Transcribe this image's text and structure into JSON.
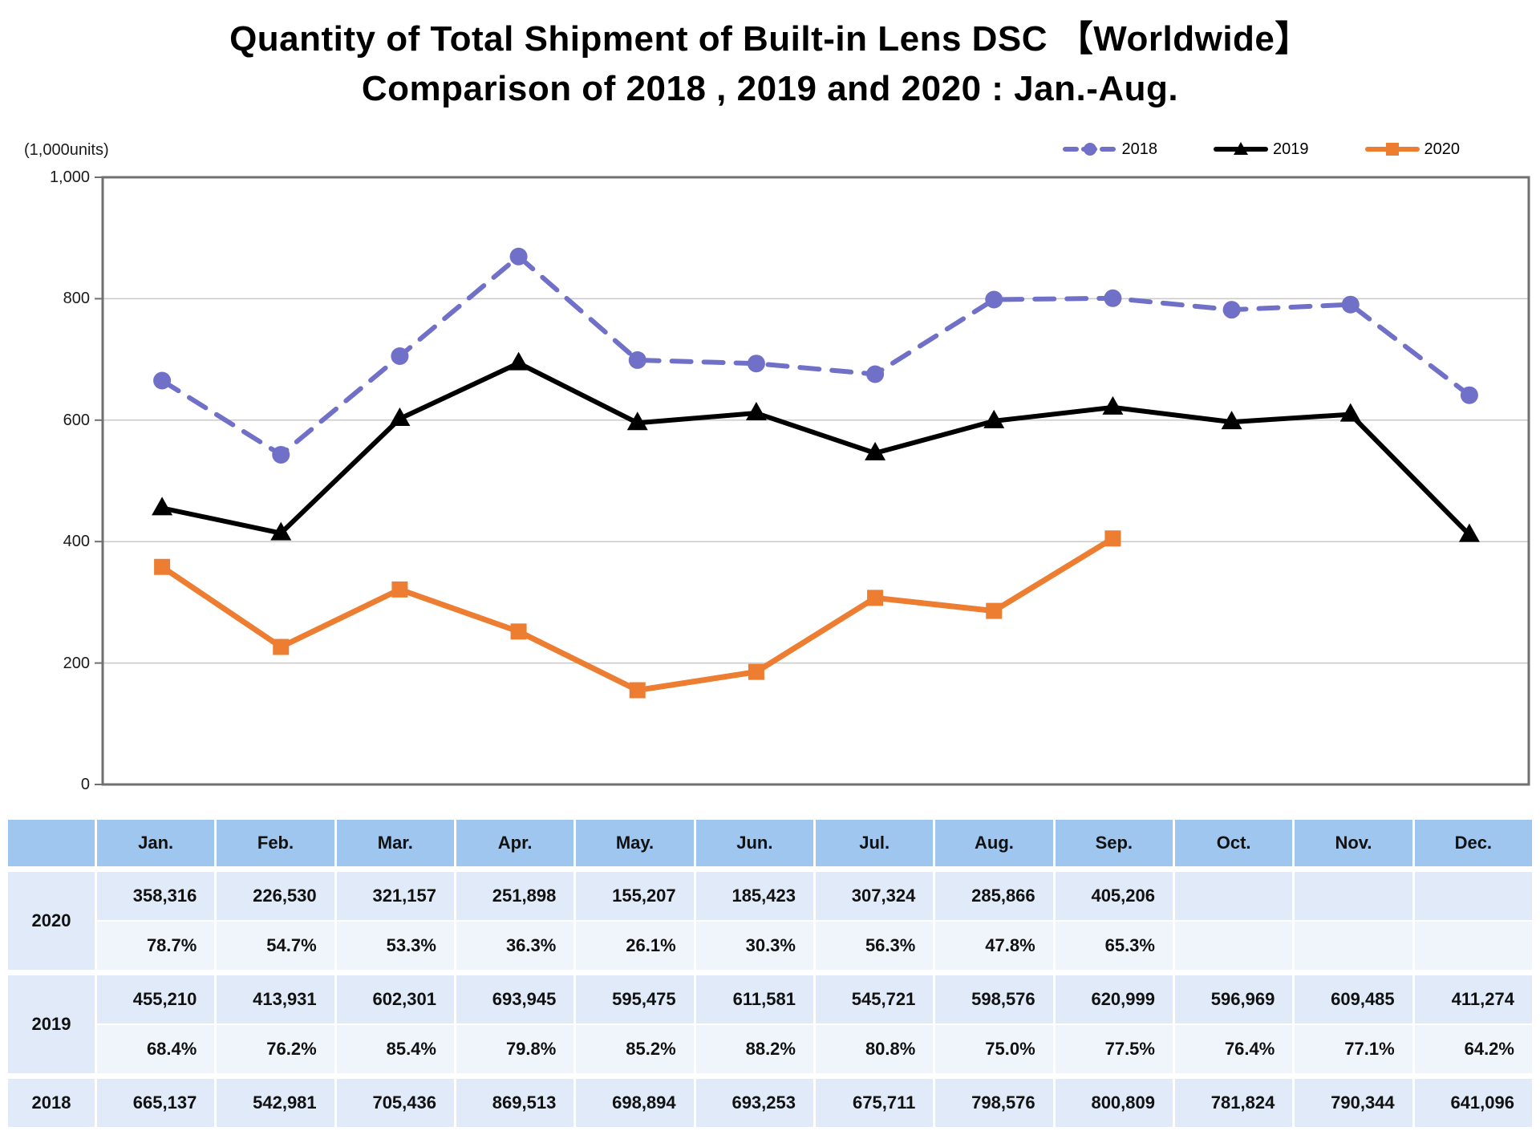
{
  "title": {
    "line1": "Quantity of Total Shipment of Built-in Lens DSC 【Worldwide】",
    "line2": "Comparison of 2018 , 2019 and 2020 : Jan.-Aug."
  },
  "chart_data": {
    "type": "line",
    "title": "Quantity of Total Shipment of Built-in Lens DSC 【Worldwide】 Comparison of 2018 , 2019 and 2020 : Jan.-Aug.",
    "unit_label": "(1,000units)",
    "xlabel": "",
    "ylabel": "(1,000units)",
    "ylim": [
      0,
      1000
    ],
    "y_tick_labels": [
      "1,000",
      "800",
      "600",
      "400",
      "200",
      "0"
    ],
    "y_tick_values": [
      1000,
      800,
      600,
      400,
      200,
      0
    ],
    "grid": true,
    "legend_position": "top-right",
    "categories": [
      "Jan.",
      "Feb.",
      "Mar.",
      "Apr.",
      "May.",
      "Jun.",
      "Jul.",
      "Aug.",
      "Sep.",
      "Oct.",
      "Nov.",
      "Dec."
    ],
    "series": [
      {
        "name": "2018",
        "color": "#7070C8",
        "line_style": "dashed",
        "marker": "circle",
        "values": [
          665.137,
          542.981,
          705.436,
          869.513,
          698.894,
          693.253,
          675.711,
          798.576,
          800.809,
          781.824,
          790.344,
          641.096
        ]
      },
      {
        "name": "2019",
        "color": "#000000",
        "line_style": "solid",
        "marker": "triangle",
        "values": [
          455.21,
          413.931,
          602.301,
          693.945,
          595.475,
          611.581,
          545.721,
          598.576,
          620.999,
          596.969,
          609.485,
          411.274
        ]
      },
      {
        "name": "2020",
        "color": "#ED7D31",
        "line_style": "solid",
        "marker": "square",
        "values": [
          358.316,
          226.53,
          321.157,
          251.898,
          155.207,
          185.423,
          307.324,
          285.866,
          405.206,
          null,
          null,
          null
        ]
      }
    ]
  },
  "table": {
    "columns": [
      "",
      "Jan.",
      "Feb.",
      "Mar.",
      "Apr.",
      "May.",
      "Jun.",
      "Jul.",
      "Aug.",
      "Sep.",
      "Oct.",
      "Nov.",
      "Dec."
    ],
    "groups": [
      {
        "label": "2020",
        "values": [
          "358,316",
          "226,530",
          "321,157",
          "251,898",
          "155,207",
          "185,423",
          "307,324",
          "285,866",
          "405,206",
          "",
          "",
          ""
        ],
        "percents": [
          "78.7%",
          "54.7%",
          "53.3%",
          "36.3%",
          "26.1%",
          "30.3%",
          "56.3%",
          "47.8%",
          "65.3%",
          "",
          "",
          ""
        ]
      },
      {
        "label": "2019",
        "values": [
          "455,210",
          "413,931",
          "602,301",
          "693,945",
          "595,475",
          "611,581",
          "545,721",
          "598,576",
          "620,999",
          "596,969",
          "609,485",
          "411,274"
        ],
        "percents": [
          "68.4%",
          "76.2%",
          "85.4%",
          "79.8%",
          "85.2%",
          "88.2%",
          "80.8%",
          "75.0%",
          "77.5%",
          "76.4%",
          "77.1%",
          "64.2%"
        ]
      },
      {
        "label": "2018",
        "values": [
          "665,137",
          "542,981",
          "705,436",
          "869,513",
          "698,894",
          "693,253",
          "675,711",
          "798,576",
          "800,809",
          "781,824",
          "790,344",
          "641,096"
        ]
      }
    ]
  },
  "colors": {
    "header_bg": "#9EC6EF",
    "row_bg": "#E0EAF8",
    "row_alt_bg": "#F0F5FC",
    "grid_line": "#C9C9C9",
    "frame": "#707070",
    "text": "#111111"
  }
}
